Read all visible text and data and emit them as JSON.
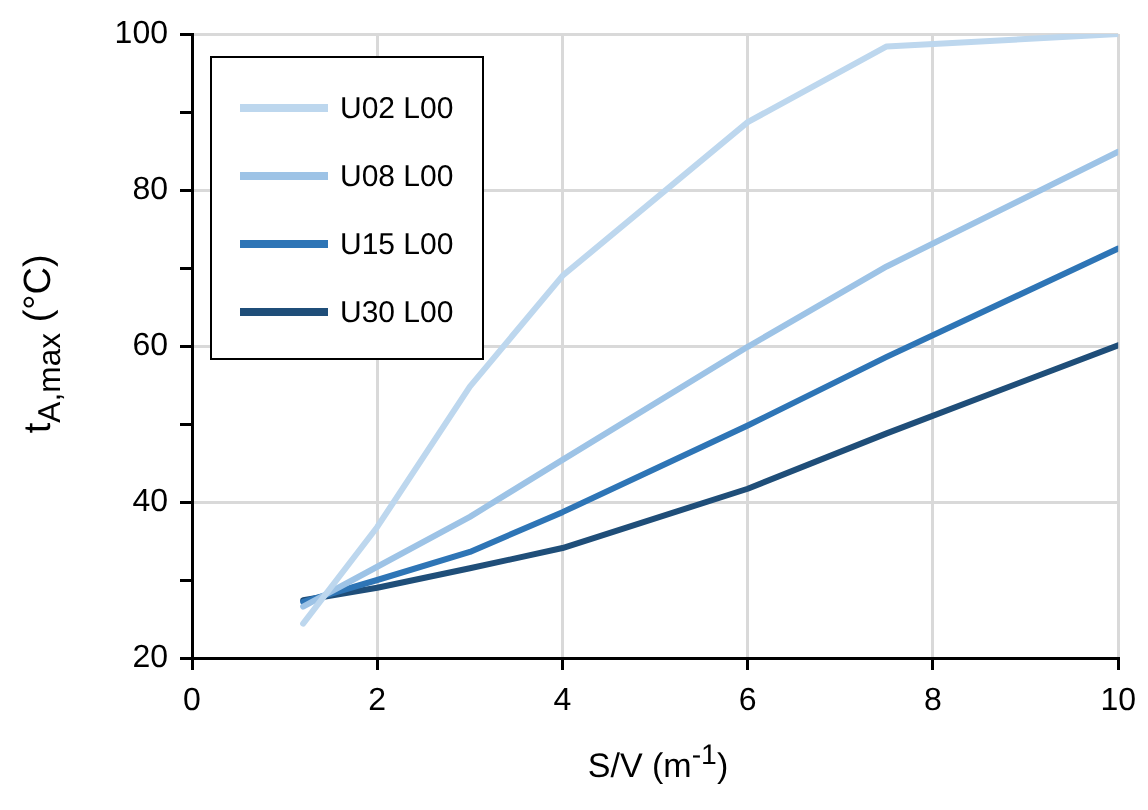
{
  "chart_data": {
    "type": "line",
    "xlabel": "S/V (m$^{-1}$)",
    "ylabel": "t$_{A,max}$ (°C)",
    "x": [
      1.2,
      2,
      3,
      4,
      6,
      7.5,
      10
    ],
    "series": [
      {
        "name": "U02 L00",
        "color": "#bdd7ee",
        "values": [
          24.4,
          36.8,
          54.8,
          69,
          88.7,
          98.4,
          100
        ]
      },
      {
        "name": "U08 L00",
        "color": "#9dc3e6",
        "values": [
          26.6,
          31.7,
          38.1,
          45.4,
          59.9,
          70.2,
          84.9
        ]
      },
      {
        "name": "U15 L00",
        "color": "#2e75b6",
        "values": [
          27.2,
          30,
          33.6,
          38.7,
          49.8,
          58.6,
          72.5
        ]
      },
      {
        "name": "U30 L00",
        "color": "#1f4e79",
        "values": [
          27.4,
          29,
          31.5,
          34.1,
          41.7,
          48.8,
          60.1
        ]
      }
    ],
    "xlim": [
      0,
      10
    ],
    "xticks": [
      0,
      2,
      4,
      6,
      8,
      10
    ],
    "ylim": [
      20,
      100
    ],
    "yticks": [
      20,
      {
        "value": 30,
        "label": null
      },
      40,
      {
        "value": 50,
        "label": null
      },
      60,
      {
        "value": 70,
        "label": null
      },
      80,
      {
        "value": 90,
        "label": null
      },
      100
    ],
    "grid": true,
    "legend": "top left",
    "marker": "none",
    "line_style": "solid"
  }
}
